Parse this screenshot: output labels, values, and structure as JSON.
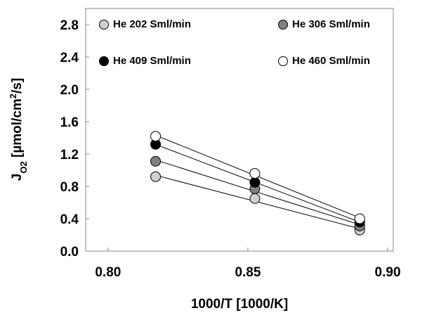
{
  "chart_data": {
    "type": "scatter",
    "x_label": "1000/T [1000/K]",
    "y_label": [
      "J",
      "O2",
      " [µmol/cm",
      "2",
      "/s]"
    ],
    "x": [
      0.817,
      0.8525,
      0.89
    ],
    "series": [
      {
        "name": "He 202 Sml/min",
        "color": "#d0d0d0",
        "values": [
          0.92,
          0.65,
          0.26
        ]
      },
      {
        "name": "He 306 Sml/min",
        "color": "#808080",
        "values": [
          1.11,
          0.77,
          0.31
        ]
      },
      {
        "name": "He 409 Sml/min",
        "color": "#000000",
        "values": [
          1.32,
          0.85,
          0.36
        ]
      },
      {
        "name": "He 460 Sml/min",
        "color": "#ffffff",
        "values": [
          1.42,
          0.96,
          0.4
        ]
      }
    ],
    "trendline": "linear",
    "xlim": [
      0.792,
      0.902
    ],
    "xticks": [
      {
        "value": 0.8,
        "label": "0.80"
      },
      0.85,
      {
        "value": 0.9,
        "label": "0.90"
      }
    ],
    "ylim": [
      0,
      3.0
    ],
    "yticks": [
      {
        "value": 0,
        "label": "0.0"
      },
      0.4,
      0.8,
      1.2,
      1.6,
      {
        "value": 2.0,
        "label": "2.0"
      },
      2.4,
      2.8
    ]
  }
}
